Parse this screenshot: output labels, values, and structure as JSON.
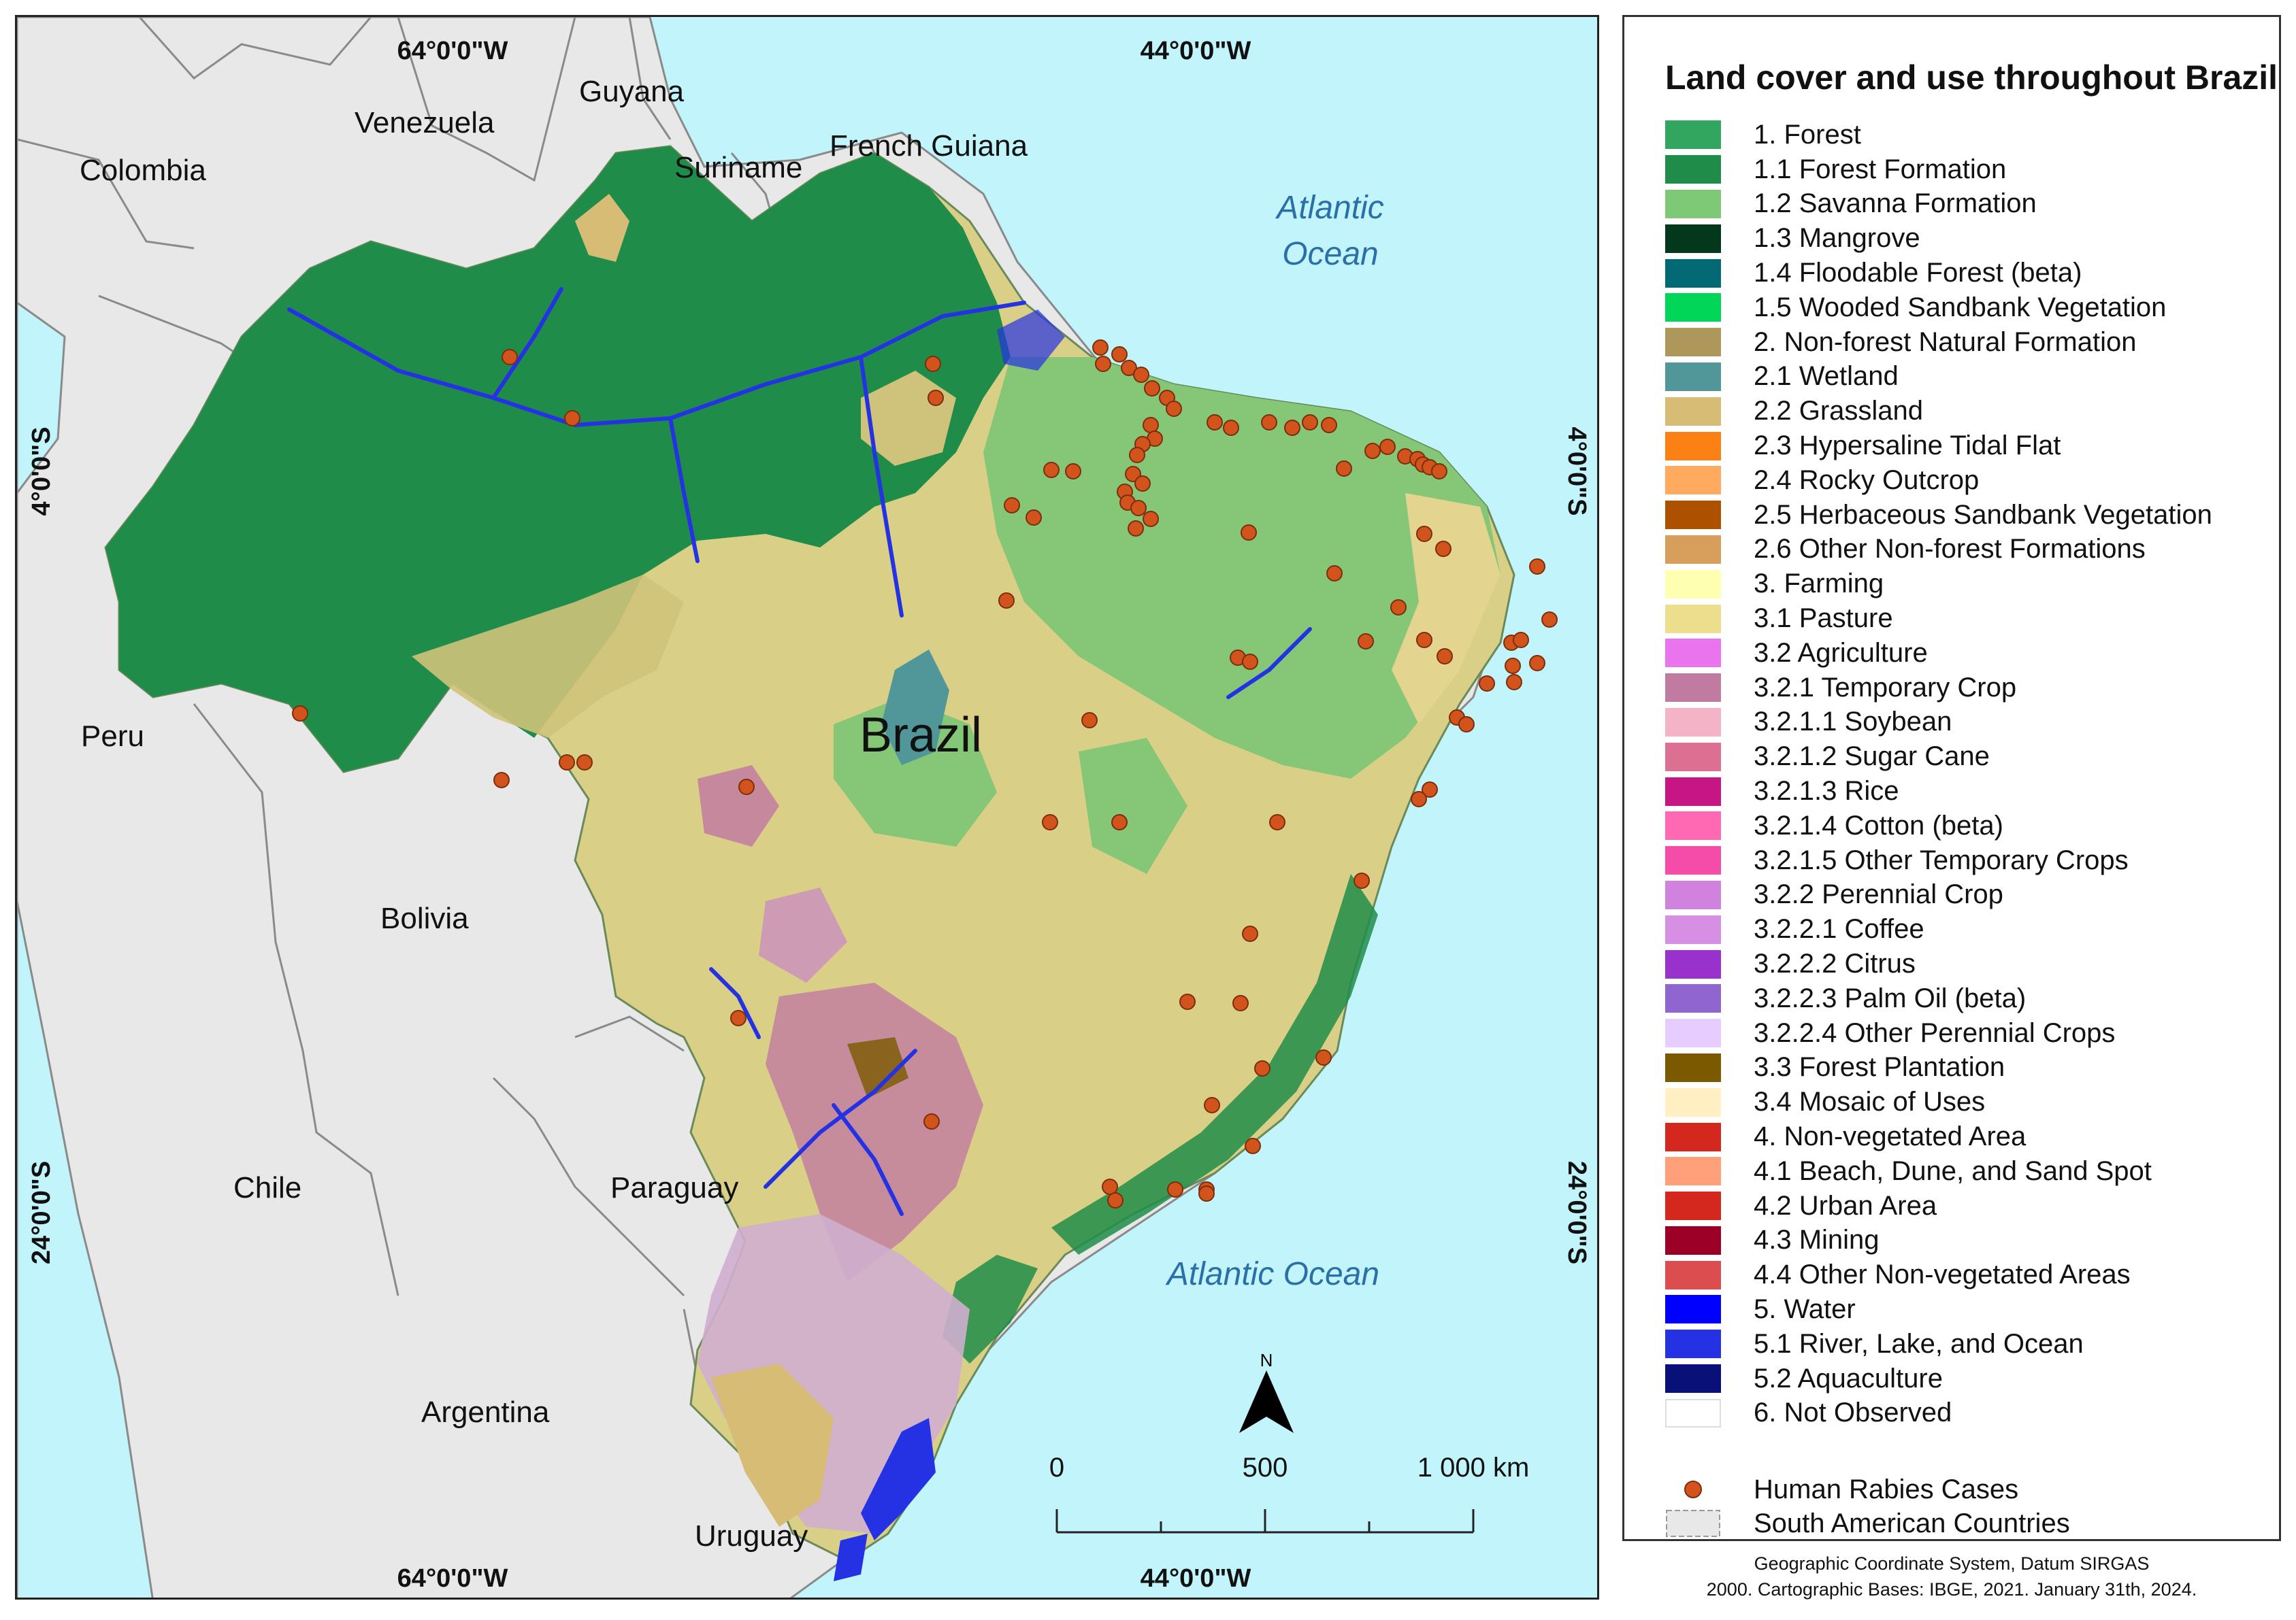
{
  "map": {
    "countries": {
      "colombia": "Colombia",
      "venezuela": "Venezuela",
      "guyana": "Guyana",
      "suriname": "Suriname",
      "french_guiana": "French Guiana",
      "peru": "Peru",
      "bolivia": "Bolivia",
      "chile": "Chile",
      "paraguay": "Paraguay",
      "argentina": "Argentina",
      "uruguay": "Uruguay",
      "brazil": "Brazil"
    },
    "oceans": {
      "atlantic_north_line1": "Atlantic",
      "atlantic_north_line2": "Ocean",
      "atlantic_south": "Atlantic Ocean"
    },
    "graticule": {
      "top_left": "64°0'0\"W",
      "top_right": "44°0'0\"W",
      "bottom_left": "64°0'0\"W",
      "bottom_right": "44°0'0\"W",
      "left_upper": "4°0'0\"S",
      "left_lower": "24°0'0\"S",
      "right_upper": "4°0'0\"S",
      "right_lower": "24°0'0\"S"
    },
    "north_arrow_label": "N",
    "scale_bar": {
      "label_0": "0",
      "label_mid": "500",
      "label_end": "1 000 km"
    }
  },
  "legend": {
    "title": "Land cover and use throughout Brazil",
    "items": [
      {
        "label": "1. Forest",
        "color": "#32a65e"
      },
      {
        "label": "1.1 Forest Formation",
        "color": "#1f8d49"
      },
      {
        "label": "1.2 Savanna Formation",
        "color": "#7dc975"
      },
      {
        "label": "1.3 Mangrove",
        "color": "#04381d"
      },
      {
        "label": "1.4 Floodable Forest (beta)",
        "color": "#026975"
      },
      {
        "label": "1.5 Wooded Sandbank Vegetation",
        "color": "#02d659"
      },
      {
        "label": "2. Non-forest Natural Formation",
        "color": "#ad975a"
      },
      {
        "label": "2.1 Wetland",
        "color": "#519799"
      },
      {
        "label": "2.2 Grassland",
        "color": "#d6bc74"
      },
      {
        "label": "2.3 Hypersaline Tidal Flat",
        "color": "#fc8114"
      },
      {
        "label": "2.4 Rocky Outcrop",
        "color": "#ffaa5f"
      },
      {
        "label": "2.5 Herbaceous Sandbank Vegetation",
        "color": "#ad5100"
      },
      {
        "label": "2.6 Other Non-forest Formations",
        "color": "#d89f5c"
      },
      {
        "label": "3. Farming",
        "color": "#ffffb2"
      },
      {
        "label": "3.1 Pasture",
        "color": "#edde8e"
      },
      {
        "label": "3.2 Agriculture",
        "color": "#e974ed"
      },
      {
        "label": "3.2.1 Temporary Crop",
        "color": "#c27ba0"
      },
      {
        "label": "3.2.1.1 Soybean",
        "color": "#f5b3c8"
      },
      {
        "label": " 3.2.1.2 Sugar Cane",
        "color": "#db7093"
      },
      {
        "label": "3.2.1.3 Rice",
        "color": "#c71585"
      },
      {
        "label": "3.2.1.4 Cotton (beta)",
        "color": "#ff69b4"
      },
      {
        "label": "3.2.1.5 Other Temporary Crops",
        "color": "#f54ca9"
      },
      {
        "label": "3.2.2 Perennial Crop",
        "color": "#d082de"
      },
      {
        "label": "3.2.2.1 Coffee",
        "color": "#d68fe2"
      },
      {
        "label": "3.2.2.2 Citrus",
        "color": "#9932cc"
      },
      {
        "label": "3.2.2.3 Palm Oil (beta)",
        "color": "#9065d0"
      },
      {
        "label": "3.2.2.4 Other Perennial Crops",
        "color": "#e6ccff"
      },
      {
        "label": "3.3 Forest Plantation",
        "color": "#7a5900"
      },
      {
        "label": "3.4 Mosaic of Uses",
        "color": "#ffefc3"
      },
      {
        "label": "4. Non-vegetated Area",
        "color": "#d4271e"
      },
      {
        "label": "4.1 Beach, Dune, and Sand Spot",
        "color": "#ffa07a"
      },
      {
        "label": "4.2 Urban Area",
        "color": "#d4271e"
      },
      {
        "label": "4.3 Mining",
        "color": "#9c0027"
      },
      {
        "label": "4.4 Other Non-vegetated Areas",
        "color": "#db4d4f"
      },
      {
        "label": "5. Water",
        "color": "#0000ff"
      },
      {
        "label": "5.1 River, Lake, and Ocean",
        "color": "#2532e4"
      },
      {
        "label": "5.2 Aquaculture",
        "color": "#091077"
      },
      {
        "label": "6. Not Observed",
        "color": "#ffffff"
      }
    ],
    "human_rabies_cases": "Human Rabies Cases",
    "south_american_countries": "South American Countries",
    "case_color": "#d2541c",
    "country_color": "#e8e8e8"
  },
  "credits": {
    "line1": "Geographic Coordinate System, Datum SIRGAS",
    "line2": "2000. Cartographic Bases: IBGE, 2021. January 31th, 2024."
  }
}
